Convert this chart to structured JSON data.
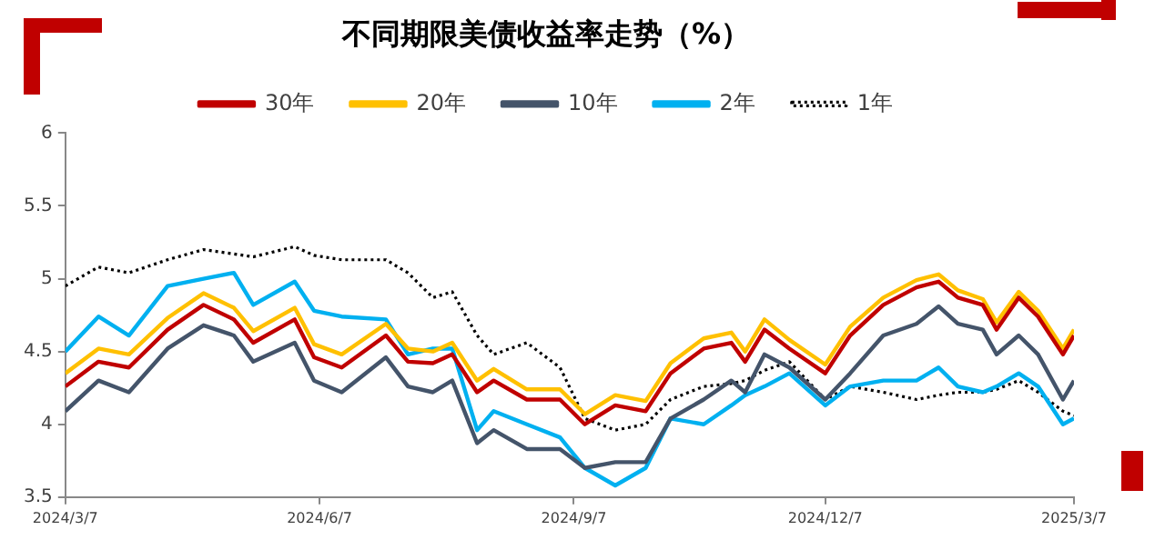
{
  "chart_data": {
    "type": "line",
    "title": "不同期限美债收益率走势（%）",
    "x": [
      "2024-03-07",
      "2024-03-19",
      "2024-03-30",
      "2024-04-13",
      "2024-04-26",
      "2024-05-07",
      "2024-05-14",
      "2024-05-29",
      "2024-06-05",
      "2024-06-15",
      "2024-07-01",
      "2024-07-09",
      "2024-07-18",
      "2024-07-25",
      "2024-08-03",
      "2024-08-09",
      "2024-08-21",
      "2024-09-02",
      "2024-09-11",
      "2024-09-22",
      "2024-10-03",
      "2024-10-12",
      "2024-10-24",
      "2024-11-03",
      "2024-11-08",
      "2024-11-15",
      "2024-11-24",
      "2024-12-07",
      "2024-12-16",
      "2024-12-28",
      "2025-01-09",
      "2025-01-17",
      "2025-01-24",
      "2025-02-02",
      "2025-02-07",
      "2025-02-15",
      "2025-02-22",
      "2025-03-03",
      "2025-03-07"
    ],
    "series": [
      {
        "name": "30年",
        "color": "#c00000",
        "values": [
          4.26,
          4.43,
          4.39,
          4.65,
          4.82,
          4.72,
          4.56,
          4.72,
          4.46,
          4.39,
          4.61,
          4.43,
          4.42,
          4.48,
          4.22,
          4.3,
          4.17,
          4.17,
          4.0,
          4.13,
          4.09,
          4.35,
          4.52,
          4.56,
          4.43,
          4.65,
          4.52,
          4.35,
          4.61,
          4.82,
          4.94,
          4.98,
          4.87,
          4.82,
          4.65,
          4.87,
          4.74,
          4.48,
          4.61
        ]
      },
      {
        "name": "20年",
        "color": "#ffc000",
        "values": [
          4.35,
          4.52,
          4.48,
          4.73,
          4.9,
          4.8,
          4.64,
          4.8,
          4.55,
          4.48,
          4.69,
          4.52,
          4.5,
          4.56,
          4.3,
          4.38,
          4.24,
          4.24,
          4.07,
          4.2,
          4.16,
          4.42,
          4.59,
          4.63,
          4.5,
          4.72,
          4.58,
          4.41,
          4.67,
          4.87,
          4.99,
          5.03,
          4.92,
          4.86,
          4.7,
          4.91,
          4.78,
          4.52,
          4.65
        ]
      },
      {
        "name": "10年",
        "color": "#44546a",
        "values": [
          4.09,
          4.3,
          4.22,
          4.52,
          4.68,
          4.61,
          4.43,
          4.56,
          4.3,
          4.22,
          4.46,
          4.26,
          4.22,
          4.3,
          3.87,
          3.96,
          3.83,
          3.83,
          3.7,
          3.74,
          3.74,
          4.04,
          4.17,
          4.3,
          4.22,
          4.48,
          4.39,
          4.17,
          4.35,
          4.61,
          4.69,
          4.81,
          4.69,
          4.65,
          4.48,
          4.61,
          4.48,
          4.17,
          4.3
        ]
      },
      {
        "name": "2年",
        "color": "#00b0f0",
        "values": [
          4.5,
          4.74,
          4.61,
          4.95,
          5.0,
          5.04,
          4.82,
          4.98,
          4.78,
          4.74,
          4.72,
          4.48,
          4.52,
          4.52,
          3.96,
          4.09,
          4.0,
          3.91,
          3.7,
          3.58,
          3.7,
          4.04,
          4.0,
          4.13,
          4.2,
          4.26,
          4.35,
          4.13,
          4.26,
          4.3,
          4.3,
          4.39,
          4.26,
          4.22,
          4.26,
          4.35,
          4.26,
          4.0,
          4.04
        ]
      },
      {
        "name": "1年",
        "color": "#000000",
        "line_style": "dotted",
        "values": [
          4.95,
          5.08,
          5.04,
          5.13,
          5.2,
          5.17,
          5.15,
          5.22,
          5.16,
          5.13,
          5.13,
          5.04,
          4.87,
          4.91,
          4.61,
          4.48,
          4.56,
          4.39,
          4.04,
          3.96,
          4.0,
          4.17,
          4.26,
          4.28,
          4.3,
          4.37,
          4.43,
          4.17,
          4.26,
          4.22,
          4.17,
          4.2,
          4.22,
          4.22,
          4.24,
          4.3,
          4.22,
          4.09,
          4.06
        ]
      }
    ],
    "xlim": [
      "2024-03-07",
      "2025-03-07"
    ],
    "xticks": [
      {
        "value": "2024-03-07",
        "label": "2024/3/7"
      },
      {
        "value": "2024-06-07",
        "label": "2024/6/7"
      },
      {
        "value": "2024-09-07",
        "label": "2024/9/7"
      },
      {
        "value": "2024-12-07",
        "label": "2024/12/7"
      },
      {
        "value": "2025-03-07",
        "label": "2025/3/7"
      }
    ],
    "ylim": [
      3.5,
      6
    ],
    "yticks": [
      3.5,
      4,
      4.5,
      5,
      5.5,
      6
    ],
    "grid": false,
    "legend": "top",
    "marker": "none",
    "line_style": "solid"
  }
}
